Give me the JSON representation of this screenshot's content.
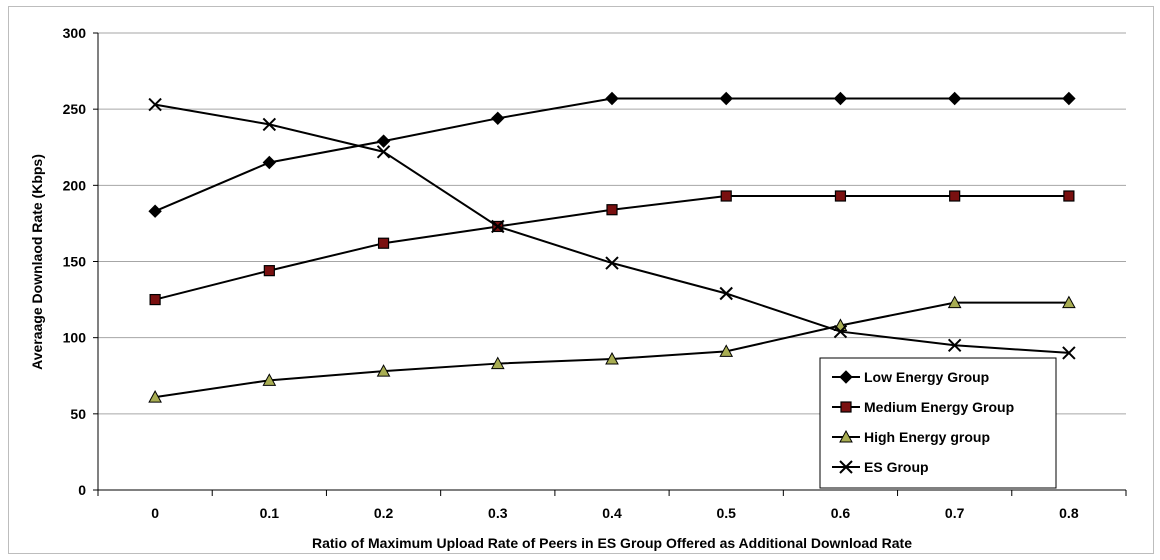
{
  "chart_data": {
    "type": "line",
    "x": [
      0,
      0.1,
      0.2,
      0.3,
      0.4,
      0.5,
      0.6,
      0.7,
      0.8
    ],
    "x_tick_labels": [
      "0",
      "0.1",
      "0.2",
      "0.3",
      "0.4",
      "0.5",
      "0.6",
      "0.7",
      "0.8"
    ],
    "xlabel": "Ratio of Maximum Upload Rate of Peers in ES Group Offered as Additional Download Rate",
    "ylabel": "Averaage Downlaod Rate (Kbps)",
    "ylim": [
      0,
      300
    ],
    "y_ticks": [
      0,
      50,
      100,
      150,
      200,
      250,
      300
    ],
    "grid": true,
    "legend_position": "bottom-right",
    "series": [
      {
        "name": "Low Energy Group",
        "marker": "diamond",
        "marker_fill": "#000000",
        "values": [
          183,
          215,
          229,
          244,
          257,
          257,
          257,
          257,
          257
        ]
      },
      {
        "name": "Medium Energy Group",
        "marker": "square",
        "marker_fill": "#7a1010",
        "values": [
          125,
          144,
          162,
          173,
          184,
          193,
          193,
          193,
          193
        ]
      },
      {
        "name": "High Energy group",
        "marker": "triangle",
        "marker_fill": "#a8ad52",
        "values": [
          61,
          72,
          78,
          83,
          86,
          91,
          108,
          123,
          123
        ]
      },
      {
        "name": "ES Group",
        "marker": "x",
        "marker_fill": "#000000",
        "values": [
          253,
          240,
          222,
          173,
          149,
          129,
          104,
          95,
          90
        ]
      }
    ]
  }
}
